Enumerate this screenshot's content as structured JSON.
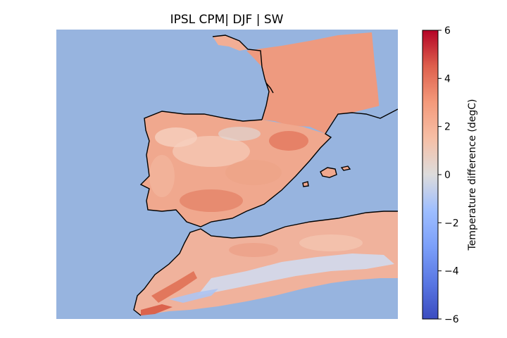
{
  "title": "IPSL CPM| DJF | SW",
  "map": {
    "sea_color": "#97b4df",
    "coastline_color": "#000000",
    "regions": [
      "Iberian Peninsula",
      "Southwestern France",
      "Morocco",
      "Algeria (northwest)",
      "Balearic Islands"
    ]
  },
  "colorbar": {
    "label": "Temperature difference (degC)",
    "colormap": "coolwarm",
    "min": -6,
    "max": 6,
    "ticks": [
      {
        "value": 6,
        "label": "6"
      },
      {
        "value": 4,
        "label": "4"
      },
      {
        "value": 2,
        "label": "2"
      },
      {
        "value": 0,
        "label": "0"
      },
      {
        "value": -2,
        "label": "−2"
      },
      {
        "value": -4,
        "label": "−4"
      },
      {
        "value": -6,
        "label": "−6"
      }
    ]
  },
  "colors": {
    "warm_strong": "#e2765a",
    "warm_mid": "#ee9a7f",
    "warm_light": "#f2c2ac",
    "neutral": "#dcdcdc",
    "cool_light": "#c5d4f1",
    "cool": "#9fbaf0"
  }
}
